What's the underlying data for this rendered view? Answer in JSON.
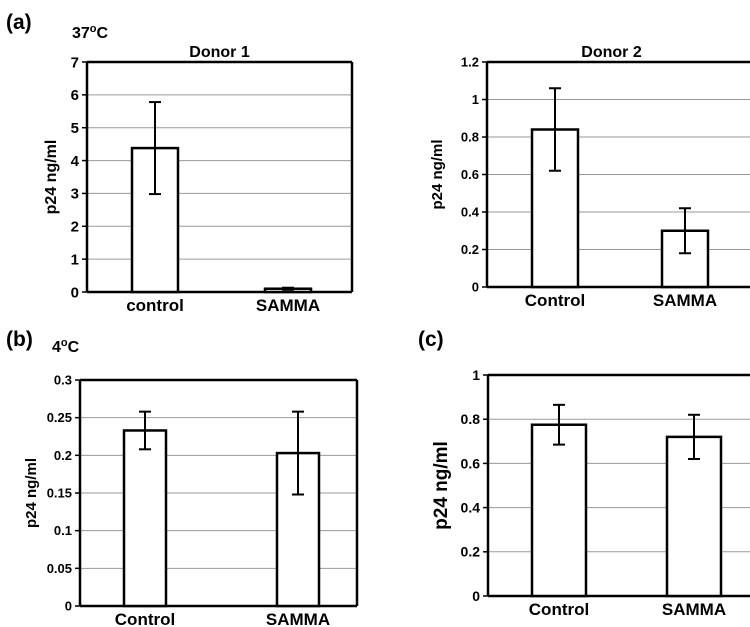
{
  "labels": {
    "panel_a": "(a)",
    "panel_b": "(b)",
    "panel_c": "(c)",
    "temp_a": "37",
    "temp_a_sup": "o",
    "temp_a_unit": "C",
    "temp_b": "4",
    "temp_b_sup": "o",
    "temp_b_unit": "C"
  },
  "chart_data": [
    {
      "type": "bar",
      "panel": "(a)",
      "title": "Donor 1",
      "ylabel": "p24 ng/ml",
      "xlabel": "",
      "categories": [
        "control",
        "SAMMA"
      ],
      "values": [
        4.38,
        0.1
      ],
      "error": [
        1.4,
        0.03
      ],
      "ylim": [
        0,
        7
      ],
      "yticks": [
        0,
        1,
        2,
        3,
        4,
        5,
        6,
        7
      ],
      "ytick_labels": [
        "0",
        "1",
        "2",
        "3",
        "4",
        "5",
        "6",
        "7"
      ],
      "grid": true
    },
    {
      "type": "bar",
      "panel": "(a)",
      "title": "Donor 2",
      "ylabel": "p24 ng/ml",
      "xlabel": "",
      "categories": [
        "Control",
        "SAMMA"
      ],
      "values": [
        0.84,
        0.3
      ],
      "error": [
        0.22,
        0.12
      ],
      "ylim": [
        0,
        1.2
      ],
      "yticks": [
        0,
        0.2,
        0.4,
        0.6,
        0.8,
        1,
        1.2
      ],
      "ytick_labels": [
        "0",
        "0.2",
        "0.4",
        "0.6",
        "0.8",
        "1",
        "1.2"
      ],
      "grid": true
    },
    {
      "type": "bar",
      "panel": "(b)",
      "title": "",
      "ylabel": "p24 ng/ml",
      "xlabel": "",
      "categories": [
        "Control",
        "SAMMA"
      ],
      "values": [
        0.233,
        0.203
      ],
      "error": [
        0.025,
        0.055
      ],
      "ylim": [
        0,
        0.3
      ],
      "yticks": [
        0,
        0.05,
        0.1,
        0.15,
        0.2,
        0.25,
        0.3
      ],
      "ytick_labels": [
        "0",
        "0.05",
        "0.1",
        "0.15",
        "0.2",
        "0.25",
        "0.3"
      ],
      "grid": true
    },
    {
      "type": "bar",
      "panel": "(c)",
      "title": "",
      "ylabel": "p24 ng/ml",
      "xlabel": "",
      "categories": [
        "Control",
        "SAMMA"
      ],
      "values": [
        0.775,
        0.72
      ],
      "error": [
        0.09,
        0.1
      ],
      "ylim": [
        0,
        1
      ],
      "yticks": [
        0,
        0.2,
        0.4,
        0.6,
        0.8,
        1
      ],
      "ytick_labels": [
        "0",
        "0.2",
        "0.4",
        "0.6",
        "0.8",
        "1"
      ],
      "grid": true
    }
  ]
}
